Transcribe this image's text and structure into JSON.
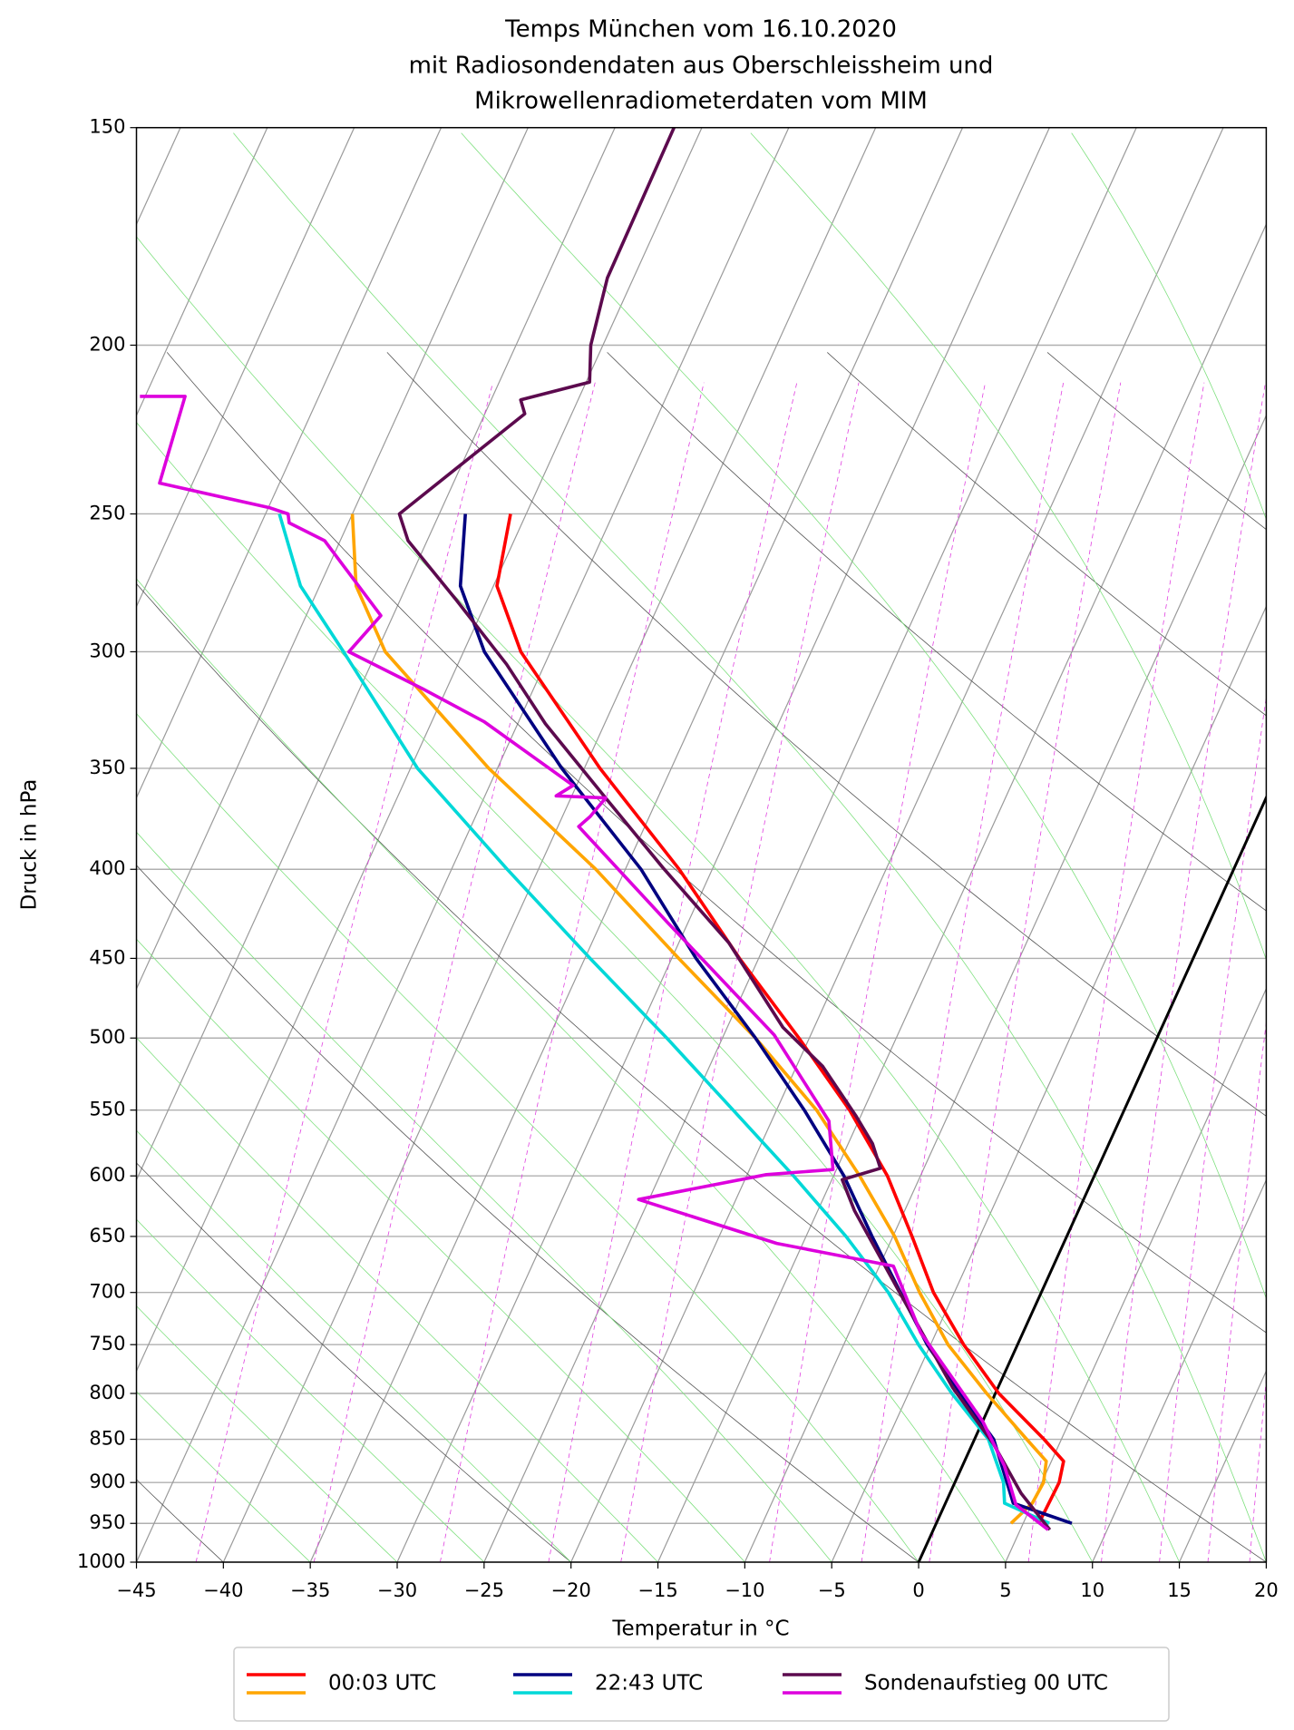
{
  "chart_data": {
    "type": "skewt",
    "title": [
      "Temps München vom 16.10.2020",
      "mit Radiosondendaten aus Oberschleissheim und",
      "Mikrowellenradiometerdaten vom MIM"
    ],
    "xlabel": "Temperatur in °C",
    "ylabel": "Druck in hPa",
    "xlim": [
      -45,
      20
    ],
    "ylim": [
      1000,
      150
    ],
    "log_y": true,
    "rotation": 30,
    "grid": true,
    "xticks": [
      {
        "value": -45,
        "label": "−45"
      },
      {
        "value": -40,
        "label": "−40"
      },
      {
        "value": -35,
        "label": "−35"
      },
      {
        "value": -30,
        "label": "−30"
      },
      {
        "value": -25,
        "label": "−25"
      },
      {
        "value": -20,
        "label": "−20"
      },
      {
        "value": -15,
        "label": "−15"
      },
      {
        "value": -10,
        "label": "−10"
      },
      {
        "value": -5,
        "label": "−5"
      },
      0,
      5,
      10,
      15,
      20
    ],
    "yticks": [
      150,
      200,
      250,
      300,
      350,
      400,
      450,
      500,
      550,
      600,
      650,
      700,
      750,
      800,
      850,
      900,
      950,
      1000
    ],
    "isotherm_step": 5,
    "highlight_isotherm": 0,
    "dry_adiabats": [
      -40,
      -20,
      0,
      20,
      40,
      60,
      80,
      100,
      120,
      140
    ],
    "moist_adiabats": [
      -35,
      -30,
      -25,
      -20,
      -15,
      -10,
      -5,
      0,
      5,
      10,
      15,
      20,
      25,
      30,
      35
    ],
    "mixing_ratios": [
      0.0001,
      0.0002,
      0.0004,
      0.0007,
      0.001,
      0.002,
      0.003,
      0.004,
      0.006,
      0.008,
      0.01,
      0.012,
      0.014,
      0.016,
      0.018,
      0.02,
      0.024,
      0.028
    ],
    "legend": "lower center",
    "series": [
      {
        "name": "00:03 UTC",
        "lines": [
          {
            "color": "#ff0000",
            "pressure": [
              950,
              900,
              875,
              850,
              800,
              750,
              700,
              650,
              600,
              550,
              500,
              450,
              400,
              350,
              300,
              275,
              250
            ],
            "values": [
              5.9,
              6.0,
              5.7,
              4.0,
              0.2,
              -3.1,
              -6.2,
              -8.9,
              -11.9,
              -15.8,
              -20.6,
              -26.1,
              -31.9,
              -39.1,
              -46.7,
              -49.8,
              -50.9
            ]
          },
          {
            "color": "#ffa500",
            "pressure": [
              950,
              925,
              900,
              875,
              850,
              800,
              750,
              700,
              650,
              600,
              550,
              500,
              450,
              400,
              350,
              300,
              275,
              250
            ],
            "values": [
              4.3,
              5.0,
              5.1,
              4.7,
              3.0,
              -0.5,
              -4.0,
              -7.0,
              -9.9,
              -13.5,
              -17.7,
              -23.1,
              -29.6,
              -36.7,
              -45.5,
              -54.5,
              -57.9,
              -60.0
            ]
          }
        ]
      },
      {
        "name": "22:43 UTC",
        "lines": [
          {
            "color": "#000080",
            "pressure": [
              950,
              925,
              900,
              850,
              800,
              750,
              700,
              650,
              600,
              550,
              500,
              450,
              400,
              350,
              300,
              275,
              250
            ],
            "values": [
              7.8,
              3.9,
              3.0,
              1.1,
              -2.0,
              -5.2,
              -8.1,
              -11.2,
              -14.4,
              -18.4,
              -23.1,
              -28.6,
              -34.1,
              -41.3,
              -48.8,
              -51.9,
              -53.5
            ]
          },
          {
            "color": "#00d8d8",
            "pressure": [
              950,
              925,
              900,
              850,
              800,
              750,
              700,
              650,
              600,
              550,
              500,
              450,
              400,
              350,
              300,
              275,
              250
            ],
            "values": [
              6.5,
              3.4,
              2.8,
              0.8,
              -2.5,
              -5.7,
              -8.8,
              -12.7,
              -17.3,
              -22.5,
              -28.2,
              -34.7,
              -41.8,
              -49.6,
              -56.9,
              -61.1,
              -64.2
            ]
          }
        ]
      },
      {
        "name": "Sondenaufstieg 00 UTC",
        "lines": [
          {
            "color": "#5c0a4e",
            "pressure": [
              958,
              913,
              855,
              794,
              696,
              628,
              603,
              594,
              575,
              554,
              519,
              493,
              441,
              399,
              364,
              330,
              305,
              280,
              259,
              250,
              219,
              215,
              210,
              200,
              183,
              150
            ],
            "values": [
              6.7,
              4.1,
              1.2,
              -2.6,
              -8.4,
              -12.9,
              -14.4,
              -12.5,
              -13.6,
              -15.3,
              -18.5,
              -21.8,
              -27.1,
              -32.9,
              -38.0,
              -43.4,
              -47.2,
              -51.8,
              -56.1,
              -57.3,
              -52.7,
              -53.3,
              -49.8,
              -50.7,
              -51.5,
              -51.6
            ]
          },
          {
            "color": "#dd00dd",
            "pressure": [
              958,
              927,
              880,
              830,
              738,
              676,
              656,
              619,
              599,
              595,
              558,
              498,
              429,
              378,
              373,
              364,
              363,
              358,
              329,
              315,
              300,
              286,
              259,
              253,
              250,
              248,
              240,
              214,
              214
            ],
            "values": [
              6.6,
              4.1,
              2.4,
              0.0,
              -5.9,
              -9.2,
              -16.5,
              -25.6,
              -18.9,
              -15.2,
              -16.7,
              -22.1,
              -31.2,
              -38.8,
              -38.4,
              -38.0,
              -40.9,
              -40.2,
              -47.0,
              -51.4,
              -56.6,
              -55.7,
              -60.9,
              -63.4,
              -63.7,
              -64.9,
              -71.9,
              -72.7,
              -75.3
            ]
          }
        ]
      }
    ]
  }
}
